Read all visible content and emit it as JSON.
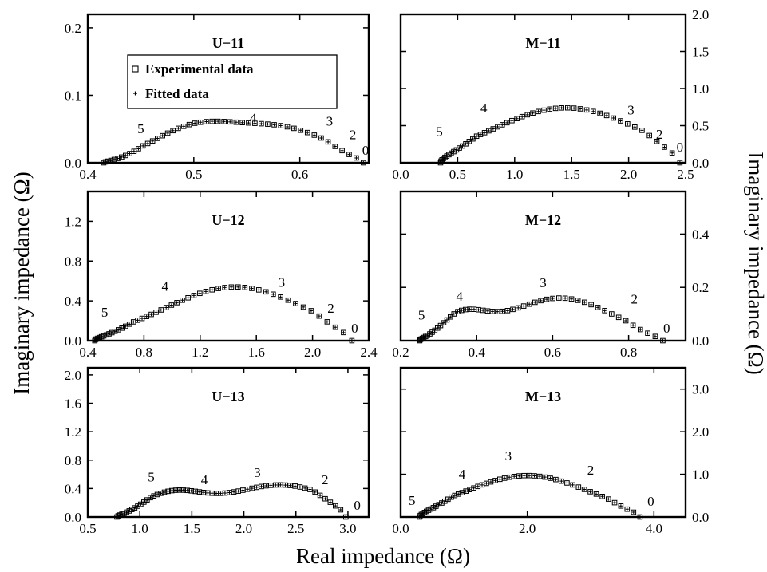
{
  "figure": {
    "xlabel": "Real impedance (Ω)",
    "ylabel_left": "Imaginary impedance (Ω)",
    "ylabel_right": "Imaginary impedance (Ω)"
  },
  "legend": {
    "experimental": "Experimental data",
    "fitted": "Fitted data"
  },
  "chart_data": [
    {
      "id": "U-11",
      "type": "scatter",
      "title": "U−11",
      "xlim": [
        0.4,
        0.665
      ],
      "ylim": [
        0,
        0.22
      ],
      "xticks": [
        0.4,
        0.5,
        0.6
      ],
      "xtick_labels": [
        "0.4",
        "0.5",
        "0.6"
      ],
      "yticks": [
        0.0,
        0.1,
        0.2
      ],
      "ytick_labels": [
        "0.0",
        "0.1",
        "0.2"
      ],
      "yaxis_side": "left",
      "legend": "top-left",
      "curve": {
        "x_start": 0.415,
        "x_end": 0.66,
        "n_points": 48,
        "x_density": 1.3,
        "peaks": [
          {
            "center": 0.5,
            "height": 0.05,
            "width": 0.04
          },
          {
            "center": 0.585,
            "height": 0.049,
            "width": 0.045
          }
        ]
      },
      "annotations": [
        {
          "text": "5",
          "x": 0.45,
          "y": 0.044
        },
        {
          "text": "4",
          "x": 0.556,
          "y": 0.06
        },
        {
          "text": "3",
          "x": 0.628,
          "y": 0.055
        },
        {
          "text": "2",
          "x": 0.65,
          "y": 0.035
        },
        {
          "text": "0",
          "x": 0.662,
          "y": 0.012
        }
      ]
    },
    {
      "id": "M-11",
      "type": "scatter",
      "title": "M−11",
      "xlim": [
        0,
        2.5
      ],
      "ylim": [
        0,
        2.0
      ],
      "xticks": [
        0,
        0.5,
        1.0,
        1.5,
        2.0,
        2.5
      ],
      "xtick_labels": [
        "0.0",
        "0.5",
        "1.0",
        "1.5",
        "2.0",
        "2.5"
      ],
      "yticks": [
        0,
        0.5,
        1.0,
        1.5,
        2.0
      ],
      "ytick_labels": [
        "0.0",
        "0.5",
        "1.0",
        "1.5",
        "2.0"
      ],
      "yaxis_side": "right",
      "curve": {
        "x_start": 0.35,
        "x_end": 2.45,
        "n_points": 50,
        "x_density": 1.6,
        "peaks": [
          {
            "center": 1.45,
            "height": 0.74,
            "width": 0.65
          }
        ]
      },
      "annotations": [
        {
          "text": "5",
          "x": 0.34,
          "y": 0.36
        },
        {
          "text": "4",
          "x": 0.73,
          "y": 0.68
        },
        {
          "text": "3",
          "x": 2.02,
          "y": 0.65
        },
        {
          "text": "2",
          "x": 2.27,
          "y": 0.32
        },
        {
          "text": "0",
          "x": 2.45,
          "y": 0.15
        }
      ]
    },
    {
      "id": "U-12",
      "type": "scatter",
      "title": "U−12",
      "xlim": [
        0.4,
        2.4
      ],
      "ylim": [
        0,
        1.5
      ],
      "xticks": [
        0.4,
        0.8,
        1.2,
        1.6,
        2.0,
        2.4
      ],
      "xtick_labels": [
        "0.4",
        "0.8",
        "1.2",
        "1.6",
        "2.0",
        "2.4"
      ],
      "yticks": [
        0,
        0.4,
        0.8,
        1.2
      ],
      "ytick_labels": [
        "0.0",
        "0.4",
        "0.8",
        "1.2"
      ],
      "yaxis_side": "left",
      "curve": {
        "x_start": 0.45,
        "x_end": 2.28,
        "n_points": 50,
        "x_density": 1.6,
        "peaks": [
          {
            "center": 1.45,
            "height": 0.54,
            "width": 0.5
          }
        ]
      },
      "annotations": [
        {
          "text": "5",
          "x": 0.52,
          "y": 0.24
        },
        {
          "text": "4",
          "x": 0.95,
          "y": 0.5
        },
        {
          "text": "3",
          "x": 1.78,
          "y": 0.54
        },
        {
          "text": "2",
          "x": 2.13,
          "y": 0.28
        },
        {
          "text": "0",
          "x": 2.3,
          "y": 0.08
        }
      ]
    },
    {
      "id": "M-12",
      "type": "scatter",
      "title": "M−12",
      "xlim": [
        0.2,
        0.95
      ],
      "ylim": [
        0,
        0.56
      ],
      "xticks": [
        0.2,
        0.4,
        0.6,
        0.8
      ],
      "xtick_labels": [
        "0.2",
        "0.4",
        "0.6",
        "0.8"
      ],
      "yticks": [
        0,
        0.2,
        0.4
      ],
      "ytick_labels": [
        "0.0",
        "0.2",
        "0.4"
      ],
      "yaxis_side": "right",
      "curve": {
        "x_start": 0.25,
        "x_end": 0.89,
        "n_points": 52,
        "x_density": 1.6,
        "peaks": [
          {
            "center": 0.36,
            "height": 0.085,
            "width": 0.065
          },
          {
            "center": 0.62,
            "height": 0.16,
            "width": 0.14
          }
        ]
      },
      "annotations": [
        {
          "text": "5",
          "x": 0.255,
          "y": 0.08
        },
        {
          "text": "4",
          "x": 0.355,
          "y": 0.15
        },
        {
          "text": "3",
          "x": 0.575,
          "y": 0.2
        },
        {
          "text": "2",
          "x": 0.815,
          "y": 0.14
        },
        {
          "text": "0",
          "x": 0.9,
          "y": 0.03
        }
      ]
    },
    {
      "id": "U-13",
      "type": "scatter",
      "title": "U−13",
      "xlim": [
        0.5,
        3.2
      ],
      "ylim": [
        0,
        2.1
      ],
      "xticks": [
        0.5,
        1.0,
        1.5,
        2.0,
        2.5,
        3.0
      ],
      "xtick_labels": [
        "0.5",
        "1.0",
        "1.5",
        "2.0",
        "2.5",
        "3.0"
      ],
      "yticks": [
        0,
        0.4,
        0.8,
        1.2,
        1.6,
        2.0
      ],
      "ytick_labels": [
        "0.0",
        "0.4",
        "0.8",
        "1.2",
        "1.6",
        "2.0"
      ],
      "yaxis_side": "left",
      "curve": {
        "x_start": 0.78,
        "x_end": 2.98,
        "n_points": 58,
        "x_density": 1.3,
        "peaks": [
          {
            "center": 1.3,
            "height": 0.31,
            "width": 0.3
          },
          {
            "center": 2.35,
            "height": 0.45,
            "width": 0.52
          }
        ]
      },
      "annotations": [
        {
          "text": "5",
          "x": 1.11,
          "y": 0.5
        },
        {
          "text": "4",
          "x": 1.62,
          "y": 0.46
        },
        {
          "text": "3",
          "x": 2.13,
          "y": 0.56
        },
        {
          "text": "2",
          "x": 2.78,
          "y": 0.46
        },
        {
          "text": "0",
          "x": 3.09,
          "y": 0.1
        }
      ]
    },
    {
      "id": "M-13",
      "type": "scatter",
      "title": "M−13",
      "xlim": [
        0,
        4.5
      ],
      "ylim": [
        0,
        3.5
      ],
      "xticks": [
        0,
        2.0,
        4.0
      ],
      "xtick_labels": [
        "0.0",
        "2.0",
        "4.0"
      ],
      "yticks": [
        0,
        1.0,
        2.0,
        3.0
      ],
      "ytick_labels": [
        "0.0",
        "1.0",
        "2.0",
        "3.0"
      ],
      "yaxis_side": "right",
      "curve": {
        "x_start": 0.3,
        "x_end": 3.78,
        "n_points": 52,
        "x_density": 1.5,
        "peaks": [
          {
            "center": 2.0,
            "height": 0.97,
            "width": 1.0
          }
        ]
      },
      "annotations": [
        {
          "text": "5",
          "x": 0.18,
          "y": 0.28
        },
        {
          "text": "4",
          "x": 0.97,
          "y": 0.9
        },
        {
          "text": "3",
          "x": 1.7,
          "y": 1.33
        },
        {
          "text": "2",
          "x": 3.0,
          "y": 0.99
        },
        {
          "text": "0",
          "x": 3.95,
          "y": 0.26
        }
      ]
    }
  ]
}
